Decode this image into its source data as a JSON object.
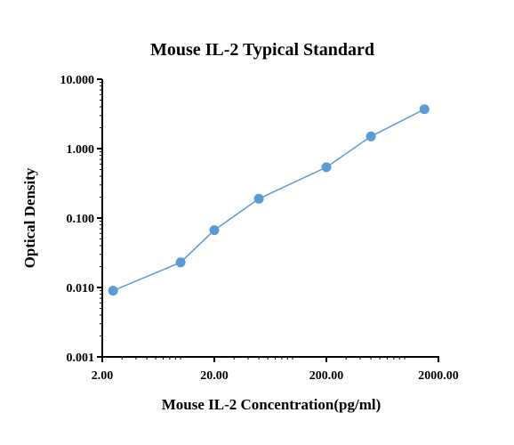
{
  "chart_data": {
    "type": "scatter",
    "title": "Mouse IL-2 Typical Standard",
    "xlabel": "Mouse IL-2 Concentration(pg/ml)",
    "ylabel": "Optical Density",
    "x_scale": "log",
    "y_scale": "log",
    "xlim": [
      2.0,
      2000.0
    ],
    "ylim": [
      0.001,
      10.0
    ],
    "x_ticks": [
      "2.00",
      "20.00",
      "200.00",
      "2000.00"
    ],
    "y_ticks": [
      "0.001",
      "0.010",
      "0.100",
      "1.000",
      "10.000"
    ],
    "grid": false,
    "line_color": "#5b9bd5",
    "marker_color": "#5b9bd5",
    "series": [
      {
        "x": [
          2.5,
          10.0,
          20.0,
          50.0,
          200.0,
          500.0,
          1500.0
        ],
        "y": [
          0.009,
          0.023,
          0.067,
          0.19,
          0.54,
          1.5,
          3.7
        ]
      }
    ]
  }
}
